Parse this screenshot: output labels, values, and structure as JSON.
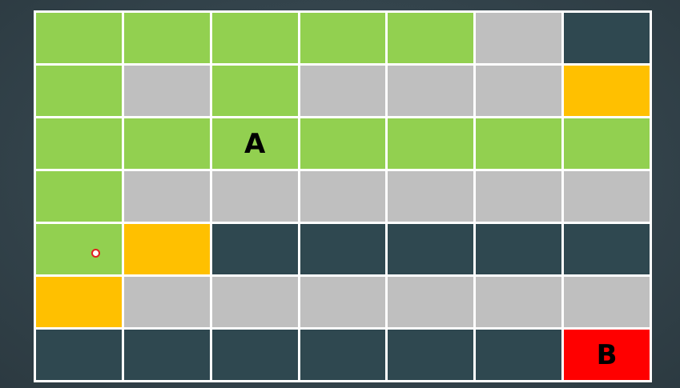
{
  "colors": {
    "green": "#92d050",
    "grey": "#bfbfbf",
    "dark": "#2f4850",
    "yellow": "#ffc000",
    "red": "#ff0000"
  },
  "grid": {
    "rows": [
      [
        "green",
        "green",
        "green",
        "green",
        "green",
        "grey",
        "dark"
      ],
      [
        "green",
        "grey",
        "green",
        "grey",
        "grey",
        "grey",
        "yellow"
      ],
      [
        "green",
        "green",
        "green",
        "green",
        "green",
        "green",
        "green"
      ],
      [
        "green",
        "grey",
        "grey",
        "grey",
        "grey",
        "grey",
        "grey"
      ],
      [
        "green",
        "yellow",
        "dark",
        "dark",
        "dark",
        "dark",
        "dark"
      ],
      [
        "yellow",
        "grey",
        "grey",
        "grey",
        "grey",
        "grey",
        "grey"
      ],
      [
        "dark",
        "dark",
        "dark",
        "dark",
        "dark",
        "dark",
        "red"
      ]
    ],
    "labels": [
      {
        "row": 2,
        "col": 2,
        "text": "A"
      },
      {
        "row": 6,
        "col": 6,
        "text": "B"
      }
    ],
    "cursor": {
      "row": 4,
      "col": 0
    }
  }
}
